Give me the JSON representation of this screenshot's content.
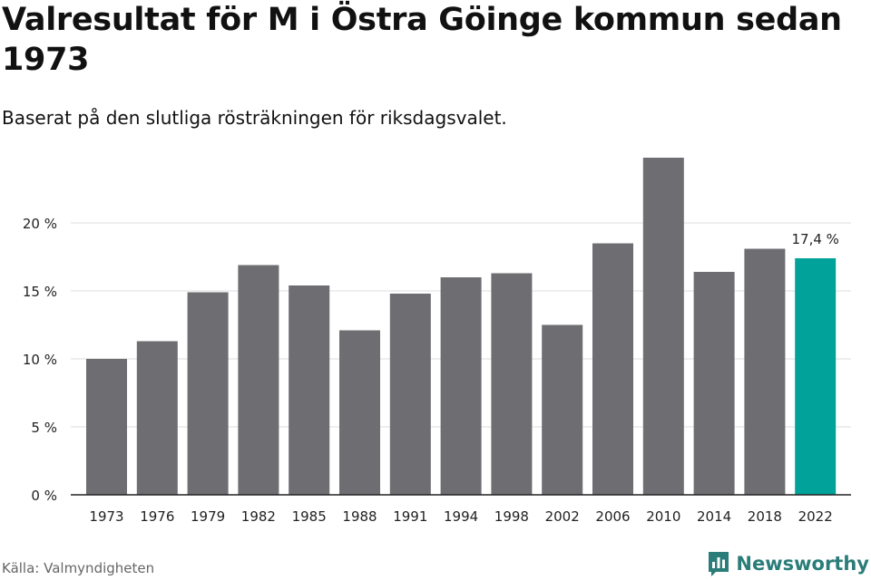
{
  "title": "Valresultat för M i Östra Göinge kommun sedan 1973",
  "subtitle": "Baserat på den slutliga rösträkningen för riksdagsvalet.",
  "source": "Källa: Valmyndigheten",
  "brand": "Newsworthy",
  "colors": {
    "bar": "#6e6d72",
    "highlight": "#00a29a",
    "grid": "#dddddd",
    "axis": "#222222",
    "brand": "#2a7d78"
  },
  "chart_data": {
    "type": "bar",
    "categories": [
      "1973",
      "1976",
      "1979",
      "1982",
      "1985",
      "1988",
      "1991",
      "1994",
      "1998",
      "2002",
      "2006",
      "2010",
      "2014",
      "2018",
      "2022"
    ],
    "values": [
      10.0,
      11.3,
      14.9,
      16.9,
      15.4,
      12.1,
      14.8,
      16.0,
      16.3,
      12.5,
      18.5,
      24.8,
      16.4,
      18.1,
      17.4
    ],
    "highlight_index": 14,
    "data_labels": [
      {
        "index": 14,
        "text": "17,4 %"
      }
    ],
    "yticks": [
      {
        "value": 0,
        "label": "0 %"
      },
      {
        "value": 5,
        "label": "5 %"
      },
      {
        "value": 10,
        "label": "10 %"
      },
      {
        "value": 15,
        "label": "15 %"
      },
      {
        "value": 20,
        "label": "20 %"
      }
    ],
    "ylim": [
      0,
      25
    ],
    "grid": true
  }
}
